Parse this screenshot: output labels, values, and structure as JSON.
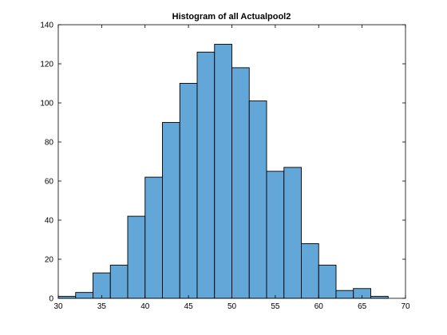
{
  "chart_data": {
    "type": "bar",
    "title": "Histogram of all Actualpool2",
    "xlabel": "",
    "ylabel": "",
    "xlim": [
      30,
      70
    ],
    "ylim": [
      0,
      140
    ],
    "xticks": [
      30,
      35,
      40,
      45,
      50,
      55,
      60,
      65,
      70
    ],
    "yticks": [
      0,
      20,
      40,
      60,
      80,
      100,
      120,
      140
    ],
    "bin_edges": [
      30,
      32,
      34,
      36,
      38,
      40,
      42,
      44,
      46,
      48,
      50,
      52,
      54,
      56,
      58,
      60,
      62,
      64,
      66,
      68
    ],
    "values": [
      1,
      3,
      13,
      17,
      42,
      62,
      90,
      110,
      126,
      130,
      118,
      101,
      65,
      67,
      28,
      17,
      4,
      5,
      1
    ],
    "grid": false,
    "legend": "none",
    "colors": {
      "bar_fill": "#63a6d8",
      "bar_edge": "#000000",
      "axes": "#000000"
    }
  }
}
